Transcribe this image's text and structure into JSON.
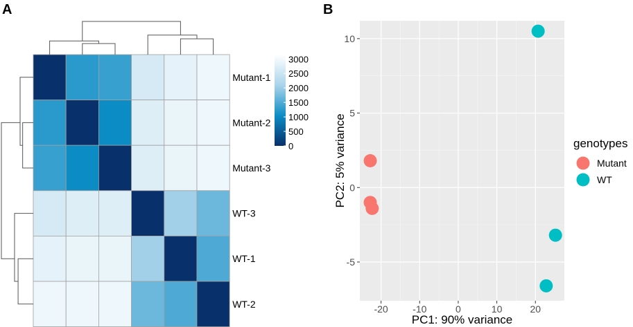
{
  "panel_a_label": "A",
  "panel_b_label": "B",
  "chart_data": [
    {
      "type": "heatmap",
      "title": "",
      "samples": [
        "Mutant-1",
        "Mutant-2",
        "Mutant-3",
        "WT-3",
        "WT-1",
        "WT-2"
      ],
      "row_labels": [
        "Mutant-1",
        "Mutant-2",
        "Mutant-3",
        "WT-3",
        "WT-1",
        "WT-2"
      ],
      "matrix": [
        [
          0,
          1250,
          1350,
          2650,
          2850,
          2950
        ],
        [
          1250,
          0,
          1050,
          2750,
          2900,
          2950
        ],
        [
          1350,
          1050,
          0,
          2750,
          2900,
          2950
        ],
        [
          2650,
          2750,
          2750,
          0,
          2050,
          1700
        ],
        [
          2850,
          2900,
          2900,
          2050,
          0,
          1500
        ],
        [
          2950,
          2950,
          2950,
          1700,
          1500,
          0
        ]
      ],
      "colorbar": {
        "min": 0,
        "max": 3150,
        "ticks": [
          0,
          500,
          1000,
          1500,
          2000,
          2500,
          3000
        ],
        "colors": [
          "#08306b",
          "#0b8cc4",
          "#a8d3ea",
          "#ffffff"
        ]
      },
      "dendrogram": {
        "clusters": [
          {
            "left": [
              "Mutant-2"
            ],
            "right": [
              "Mutant-3"
            ],
            "height": 1050
          },
          {
            "left": [
              "Mutant-1"
            ],
            "right": [
              "Mutant-2",
              "Mutant-3"
            ],
            "height": 1300
          },
          {
            "left": [
              "WT-1"
            ],
            "right": [
              "WT-2"
            ],
            "height": 1500
          },
          {
            "left": [
              "WT-3"
            ],
            "right": [
              "WT-1",
              "WT-2"
            ],
            "height": 1850
          },
          {
            "left": [
              "Mutant-1",
              "Mutant-2",
              "Mutant-3"
            ],
            "right": [
              "WT-3",
              "WT-1",
              "WT-2"
            ],
            "height": 3150
          }
        ]
      }
    },
    {
      "type": "scatter",
      "title": "",
      "xlabel": "PC1: 90% variance",
      "ylabel": "PC2: 5% variance",
      "xlim": [
        -25.5,
        27.5
      ],
      "ylim": [
        -7.6,
        11.2
      ],
      "xticks": [
        -20,
        -10,
        0,
        10,
        20
      ],
      "yticks": [
        -5,
        0,
        5,
        10
      ],
      "grid": true,
      "legend_title": "genotypes",
      "legend_position": "right",
      "series": [
        {
          "name": "Mutant",
          "color": "#f8766d",
          "points": [
            {
              "x": -22.8,
              "y": 1.8
            },
            {
              "x": -22.8,
              "y": -1.0
            },
            {
              "x": -22.3,
              "y": -1.4
            }
          ]
        },
        {
          "name": "WT",
          "color": "#00bfc4",
          "points": [
            {
              "x": 20.7,
              "y": 10.5
            },
            {
              "x": 25.2,
              "y": -3.2
            },
            {
              "x": 22.8,
              "y": -6.6
            }
          ]
        }
      ]
    }
  ]
}
